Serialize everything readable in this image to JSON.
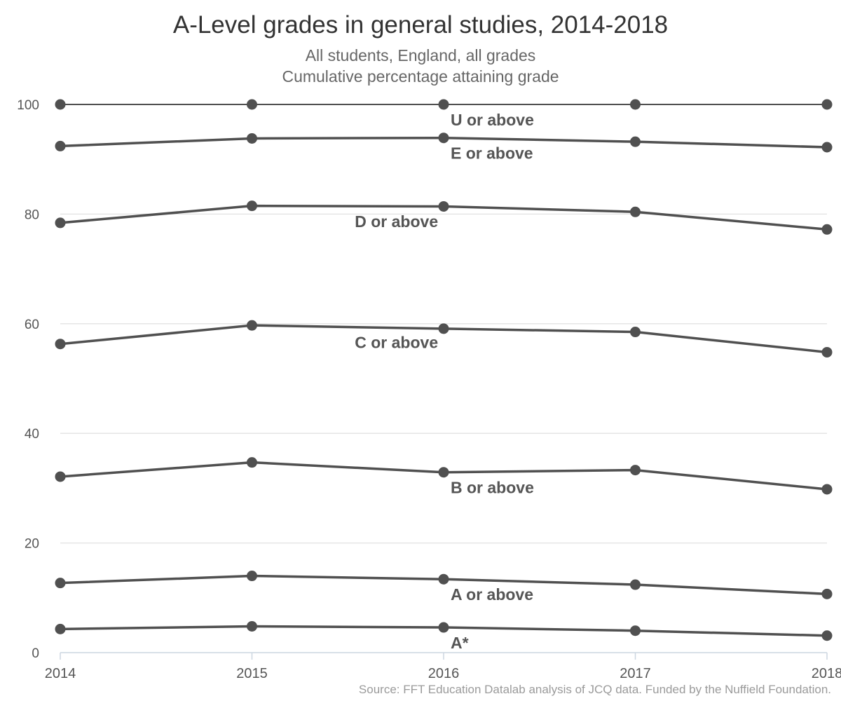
{
  "chart_data": {
    "type": "line",
    "title": "A-Level grades in general studies, 2014-2018",
    "subtitle": [
      "All students, England, all grades",
      "Cumulative percentage attaining grade"
    ],
    "source": "Source: FFT Education Datalab analysis of JCQ data. Funded by the Nuffield Foundation.",
    "x": [
      "2014",
      "2015",
      "2016",
      "2017",
      "2018"
    ],
    "ylim": [
      0,
      100
    ],
    "yticks": [
      0,
      20,
      40,
      60,
      80,
      100
    ],
    "grid": true,
    "line_color": "#505050",
    "series": [
      {
        "name": "U or above",
        "values": [
          100,
          100,
          100,
          100,
          100
        ],
        "label_at": 2
      },
      {
        "name": "E or above",
        "values": [
          92.4,
          93.8,
          93.9,
          93.2,
          92.2
        ],
        "label_at": 2
      },
      {
        "name": "D or above",
        "values": [
          78.4,
          81.5,
          81.4,
          80.4,
          77.2
        ],
        "label_at": 1.5
      },
      {
        "name": "C or above",
        "values": [
          56.3,
          59.7,
          59.1,
          58.5,
          54.8
        ],
        "label_at": 1.5
      },
      {
        "name": "B or above",
        "values": [
          32.1,
          34.7,
          32.9,
          33.3,
          29.8
        ],
        "label_at": 2
      },
      {
        "name": "A or above",
        "values": [
          12.7,
          14.0,
          13.4,
          12.4,
          10.7
        ],
        "label_at": 2
      },
      {
        "name": "A*",
        "values": [
          4.3,
          4.8,
          4.6,
          4.0,
          3.1
        ],
        "label_at": 2
      }
    ]
  }
}
